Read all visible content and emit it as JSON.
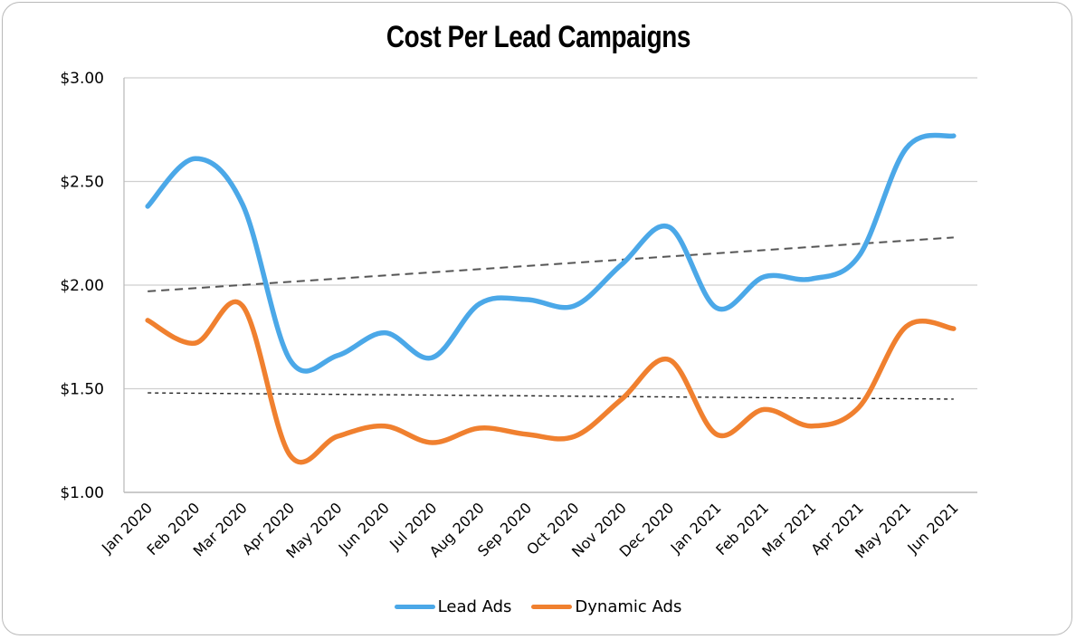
{
  "chart_data": {
    "type": "line",
    "title": "Cost Per Lead Campaigns",
    "xlabel": "",
    "ylabel": "",
    "ylim": [
      1.0,
      3.0
    ],
    "yticks": [
      1.0,
      1.5,
      2.0,
      2.5,
      3.0
    ],
    "ytick_labels": [
      "$1.00",
      "$1.50",
      "$2.00",
      "$2.50",
      "$3.00"
    ],
    "grid": true,
    "smooth": true,
    "legend_position": "bottom",
    "categories": [
      "Jan 2020",
      "Feb 2020",
      "Mar 2020",
      "Apr 2020",
      "May 2020",
      "Jun 2020",
      "Jul 2020",
      "Aug 2020",
      "Sep 2020",
      "Oct 2020",
      "Nov 2020",
      "Dec 2020",
      "Jan 2021",
      "Feb 2021",
      "Mar 2021",
      "Apr 2021",
      "May 2021",
      "Jun 2021"
    ],
    "series": [
      {
        "name": "Lead Ads",
        "color": "#4BA8E8",
        "values": [
          2.38,
          2.61,
          2.39,
          1.64,
          1.66,
          1.77,
          1.65,
          1.91,
          1.93,
          1.9,
          2.1,
          2.28,
          1.89,
          2.04,
          2.03,
          2.14,
          2.66,
          2.72
        ]
      },
      {
        "name": "Dynamic Ads",
        "color": "#F0802F",
        "values": [
          1.83,
          1.72,
          1.9,
          1.18,
          1.27,
          1.32,
          1.24,
          1.31,
          1.28,
          1.27,
          1.45,
          1.64,
          1.28,
          1.4,
          1.32,
          1.41,
          1.8,
          1.79
        ]
      }
    ],
    "trendlines": [
      {
        "series": "Lead Ads",
        "type": "linear",
        "start": 1.97,
        "end": 2.23,
        "color": "#555555",
        "style": "dashed"
      },
      {
        "series": "Dynamic Ads",
        "type": "linear",
        "start": 1.48,
        "end": 1.45,
        "color": "#222222",
        "style": "dotted"
      }
    ]
  }
}
